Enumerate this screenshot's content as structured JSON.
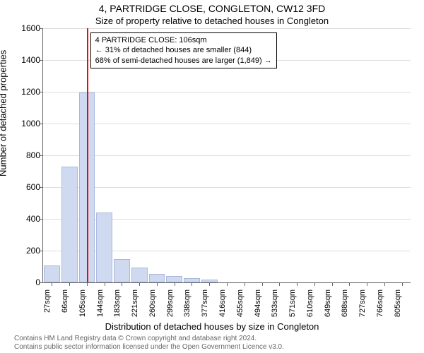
{
  "chart": {
    "type": "histogram",
    "title": "4, PARTRIDGE CLOSE, CONGLETON, CW12 3FD",
    "subtitle": "Size of property relative to detached houses in Congleton",
    "ylabel": "Number of detached properties",
    "xlabel": "Distribution of detached houses by size in Congleton",
    "ylim": [
      0,
      1600
    ],
    "ytick_step": 200,
    "yticks": [
      0,
      200,
      400,
      600,
      800,
      1000,
      1200,
      1400,
      1600
    ],
    "xticks": [
      "27sqm",
      "66sqm",
      "105sqm",
      "144sqm",
      "183sqm",
      "221sqm",
      "260sqm",
      "299sqm",
      "338sqm",
      "377sqm",
      "416sqm",
      "455sqm",
      "494sqm",
      "533sqm",
      "571sqm",
      "610sqm",
      "649sqm",
      "688sqm",
      "727sqm",
      "766sqm",
      "805sqm"
    ],
    "bars": [
      105,
      730,
      1195,
      440,
      145,
      95,
      55,
      42,
      28,
      20,
      0,
      0,
      0,
      0,
      0,
      0,
      0,
      0,
      0,
      0,
      0
    ],
    "bar_color": "#cfd9ef",
    "bar_border": "#a9b8dd",
    "background_color": "#ffffff",
    "grid_color": "#dddddd",
    "axis_color": "#666666",
    "marker": {
      "position_index": 2.03,
      "color": "#ff0000"
    },
    "callout": {
      "line1": "4 PARTRIDGE CLOSE: 106sqm",
      "line2": "← 31% of detached houses are smaller (844)",
      "line3": "68% of semi-detached houses are larger (1,849) →"
    },
    "footer1": "Contains HM Land Registry data © Crown copyright and database right 2024.",
    "footer2": "Contains public sector information licensed under the Open Government Licence v3.0."
  }
}
